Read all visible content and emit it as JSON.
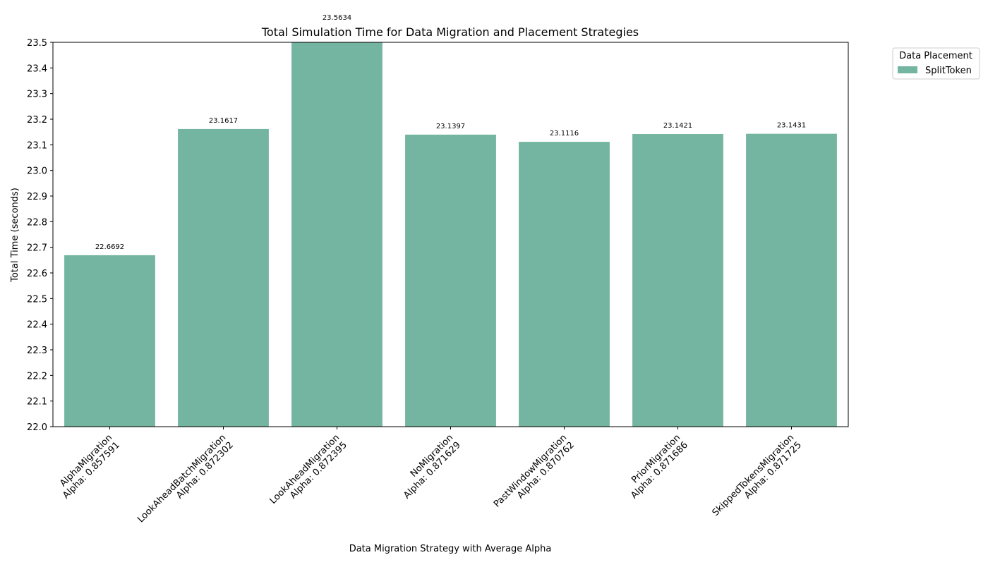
{
  "chart_data": {
    "type": "bar",
    "title": "Total Simulation Time for Data Migration and Placement Strategies",
    "xlabel": "Data Migration Strategy with Average Alpha",
    "ylabel": "Total Time (seconds)",
    "ylim": [
      22.0,
      23.5
    ],
    "yticks": [
      "22.0",
      "22.1",
      "22.2",
      "22.3",
      "22.4",
      "22.5",
      "22.6",
      "22.7",
      "22.8",
      "22.9",
      "23.0",
      "23.1",
      "23.2",
      "23.3",
      "23.4",
      "23.5"
    ],
    "categories": [
      [
        "AlphaMigration",
        "Alpha: 0.857591"
      ],
      [
        "LookAheadBatchMigration",
        "Alpha: 0.872302"
      ],
      [
        "LookAheadMigration",
        "Alpha: 0.872395"
      ],
      [
        "NoMigration",
        "Alpha: 0.871629"
      ],
      [
        "PastWindowMigration",
        "Alpha: 0.870762"
      ],
      [
        "PriorMigration",
        "Alpha: 0.871686"
      ],
      [
        "SkippedTokensMigration",
        "Alpha: 0.871725"
      ]
    ],
    "series": [
      {
        "name": "SplitToken",
        "color": "#73b5a0",
        "values": [
          22.6692,
          23.1617,
          23.5634,
          23.1397,
          23.1116,
          23.1421,
          23.1431
        ],
        "data_labels": [
          "22.6692",
          "23.1617",
          "23.5634",
          "23.1397",
          "23.1116",
          "23.1421",
          "23.1431"
        ]
      }
    ],
    "legend": {
      "title": "Data Placement",
      "position": "outside-top-right"
    },
    "grid": false
  }
}
